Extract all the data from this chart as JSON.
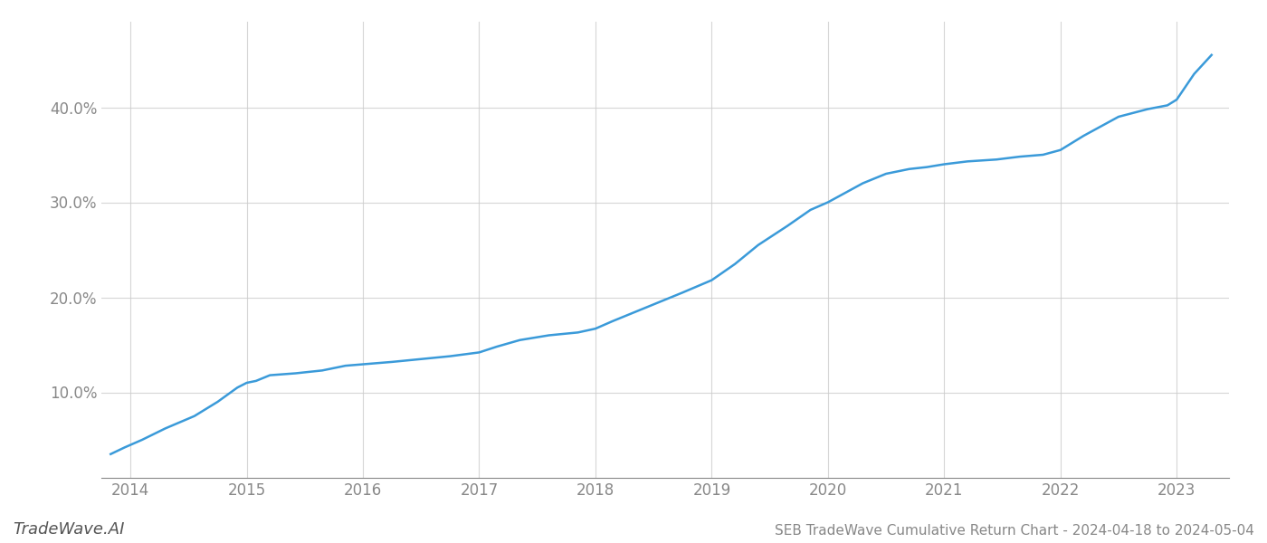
{
  "x_values": [
    2013.83,
    2013.95,
    2014.1,
    2014.3,
    2014.55,
    2014.75,
    2014.92,
    2015.0,
    2015.08,
    2015.2,
    2015.42,
    2015.65,
    2015.85,
    2016.05,
    2016.25,
    2016.5,
    2016.75,
    2017.0,
    2017.15,
    2017.35,
    2017.6,
    2017.85,
    2018.0,
    2018.15,
    2018.35,
    2018.55,
    2018.75,
    2019.0,
    2019.2,
    2019.4,
    2019.65,
    2019.85,
    2020.0,
    2020.15,
    2020.3,
    2020.5,
    2020.7,
    2020.85,
    2021.0,
    2021.2,
    2021.45,
    2021.65,
    2021.85,
    2022.0,
    2022.2,
    2022.5,
    2022.75,
    2022.92,
    2023.0,
    2023.15,
    2023.3
  ],
  "y_values": [
    3.5,
    4.2,
    5.0,
    6.2,
    7.5,
    9.0,
    10.5,
    11.0,
    11.2,
    11.8,
    12.0,
    12.3,
    12.8,
    13.0,
    13.2,
    13.5,
    13.8,
    14.2,
    14.8,
    15.5,
    16.0,
    16.3,
    16.7,
    17.5,
    18.5,
    19.5,
    20.5,
    21.8,
    23.5,
    25.5,
    27.5,
    29.2,
    30.0,
    31.0,
    32.0,
    33.0,
    33.5,
    33.7,
    34.0,
    34.3,
    34.5,
    34.8,
    35.0,
    35.5,
    37.0,
    39.0,
    39.8,
    40.2,
    40.8,
    43.5,
    45.5
  ],
  "line_color": "#3a9ad9",
  "line_width": 1.8,
  "title": "SEB TradeWave Cumulative Return Chart - 2024-04-18 to 2024-05-04",
  "xlim": [
    2013.75,
    2023.45
  ],
  "ylim": [
    1.0,
    49.0
  ],
  "yticks": [
    10,
    20,
    30,
    40
  ],
  "ytick_labels": [
    "10.0%",
    "20.0%",
    "30.0%",
    "40.0%"
  ],
  "xticks": [
    2014,
    2015,
    2016,
    2017,
    2018,
    2019,
    2020,
    2021,
    2022,
    2023
  ],
  "xtick_labels": [
    "2014",
    "2015",
    "2016",
    "2017",
    "2018",
    "2019",
    "2020",
    "2021",
    "2022",
    "2023"
  ],
  "grid_color": "#cccccc",
  "grid_alpha": 0.8,
  "background_color": "#ffffff",
  "watermark_text": "TradeWave.AI",
  "watermark_color": "#555555",
  "watermark_fontsize": 13,
  "title_fontsize": 11,
  "tick_fontsize": 12,
  "tick_color": "#888888"
}
